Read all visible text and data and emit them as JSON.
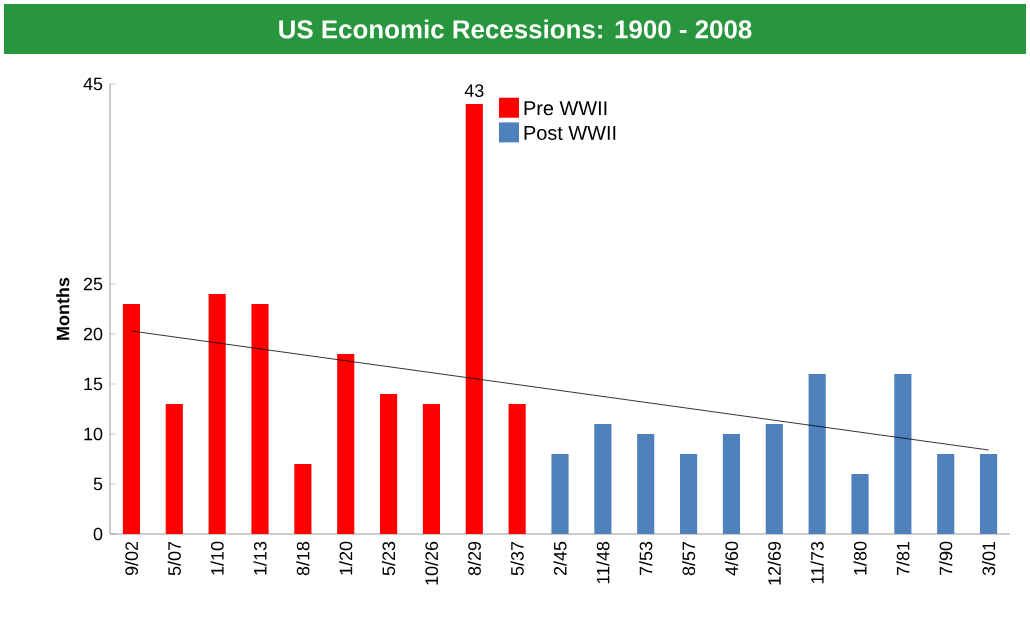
{
  "chart_data": {
    "type": "bar",
    "title": "US Economic Recessions: 1900 - 2008",
    "ylabel": "Months",
    "categories": [
      "9/02",
      "5/07",
      "1/10",
      "1/13",
      "8/18",
      "1/20",
      "5/23",
      "10/26",
      "8/29",
      "5/37",
      "2/45",
      "11/48",
      "7/53",
      "8/57",
      "4/60",
      "12/69",
      "11/73",
      "1/80",
      "7/81",
      "7/90",
      "3/01"
    ],
    "series": [
      {
        "name": "Pre WWII",
        "color": "#ff0000",
        "values": [
          23,
          13,
          24,
          23,
          7,
          18,
          14,
          13,
          43,
          13,
          null,
          null,
          null,
          null,
          null,
          null,
          null,
          null,
          null,
          null,
          null
        ],
        "value_labels": [
          null,
          null,
          null,
          null,
          null,
          null,
          null,
          null,
          "43",
          null,
          null,
          null,
          null,
          null,
          null,
          null,
          null,
          null,
          null,
          null,
          null
        ]
      },
      {
        "name": "Post WWII",
        "color": "#4f81bd",
        "values": [
          null,
          null,
          null,
          null,
          null,
          null,
          null,
          null,
          null,
          null,
          8,
          11,
          10,
          8,
          10,
          11,
          16,
          6,
          16,
          8,
          8
        ]
      },
      {
        "type": "line",
        "color": "#000000",
        "x": [
          "9/02",
          "3/01"
        ],
        "values": [
          20.3,
          8.4
        ]
      }
    ],
    "ylim": [
      0,
      45
    ],
    "yticks": [
      0,
      5,
      10,
      15,
      20,
      25,
      45
    ],
    "legend": "top",
    "grid": false
  }
}
